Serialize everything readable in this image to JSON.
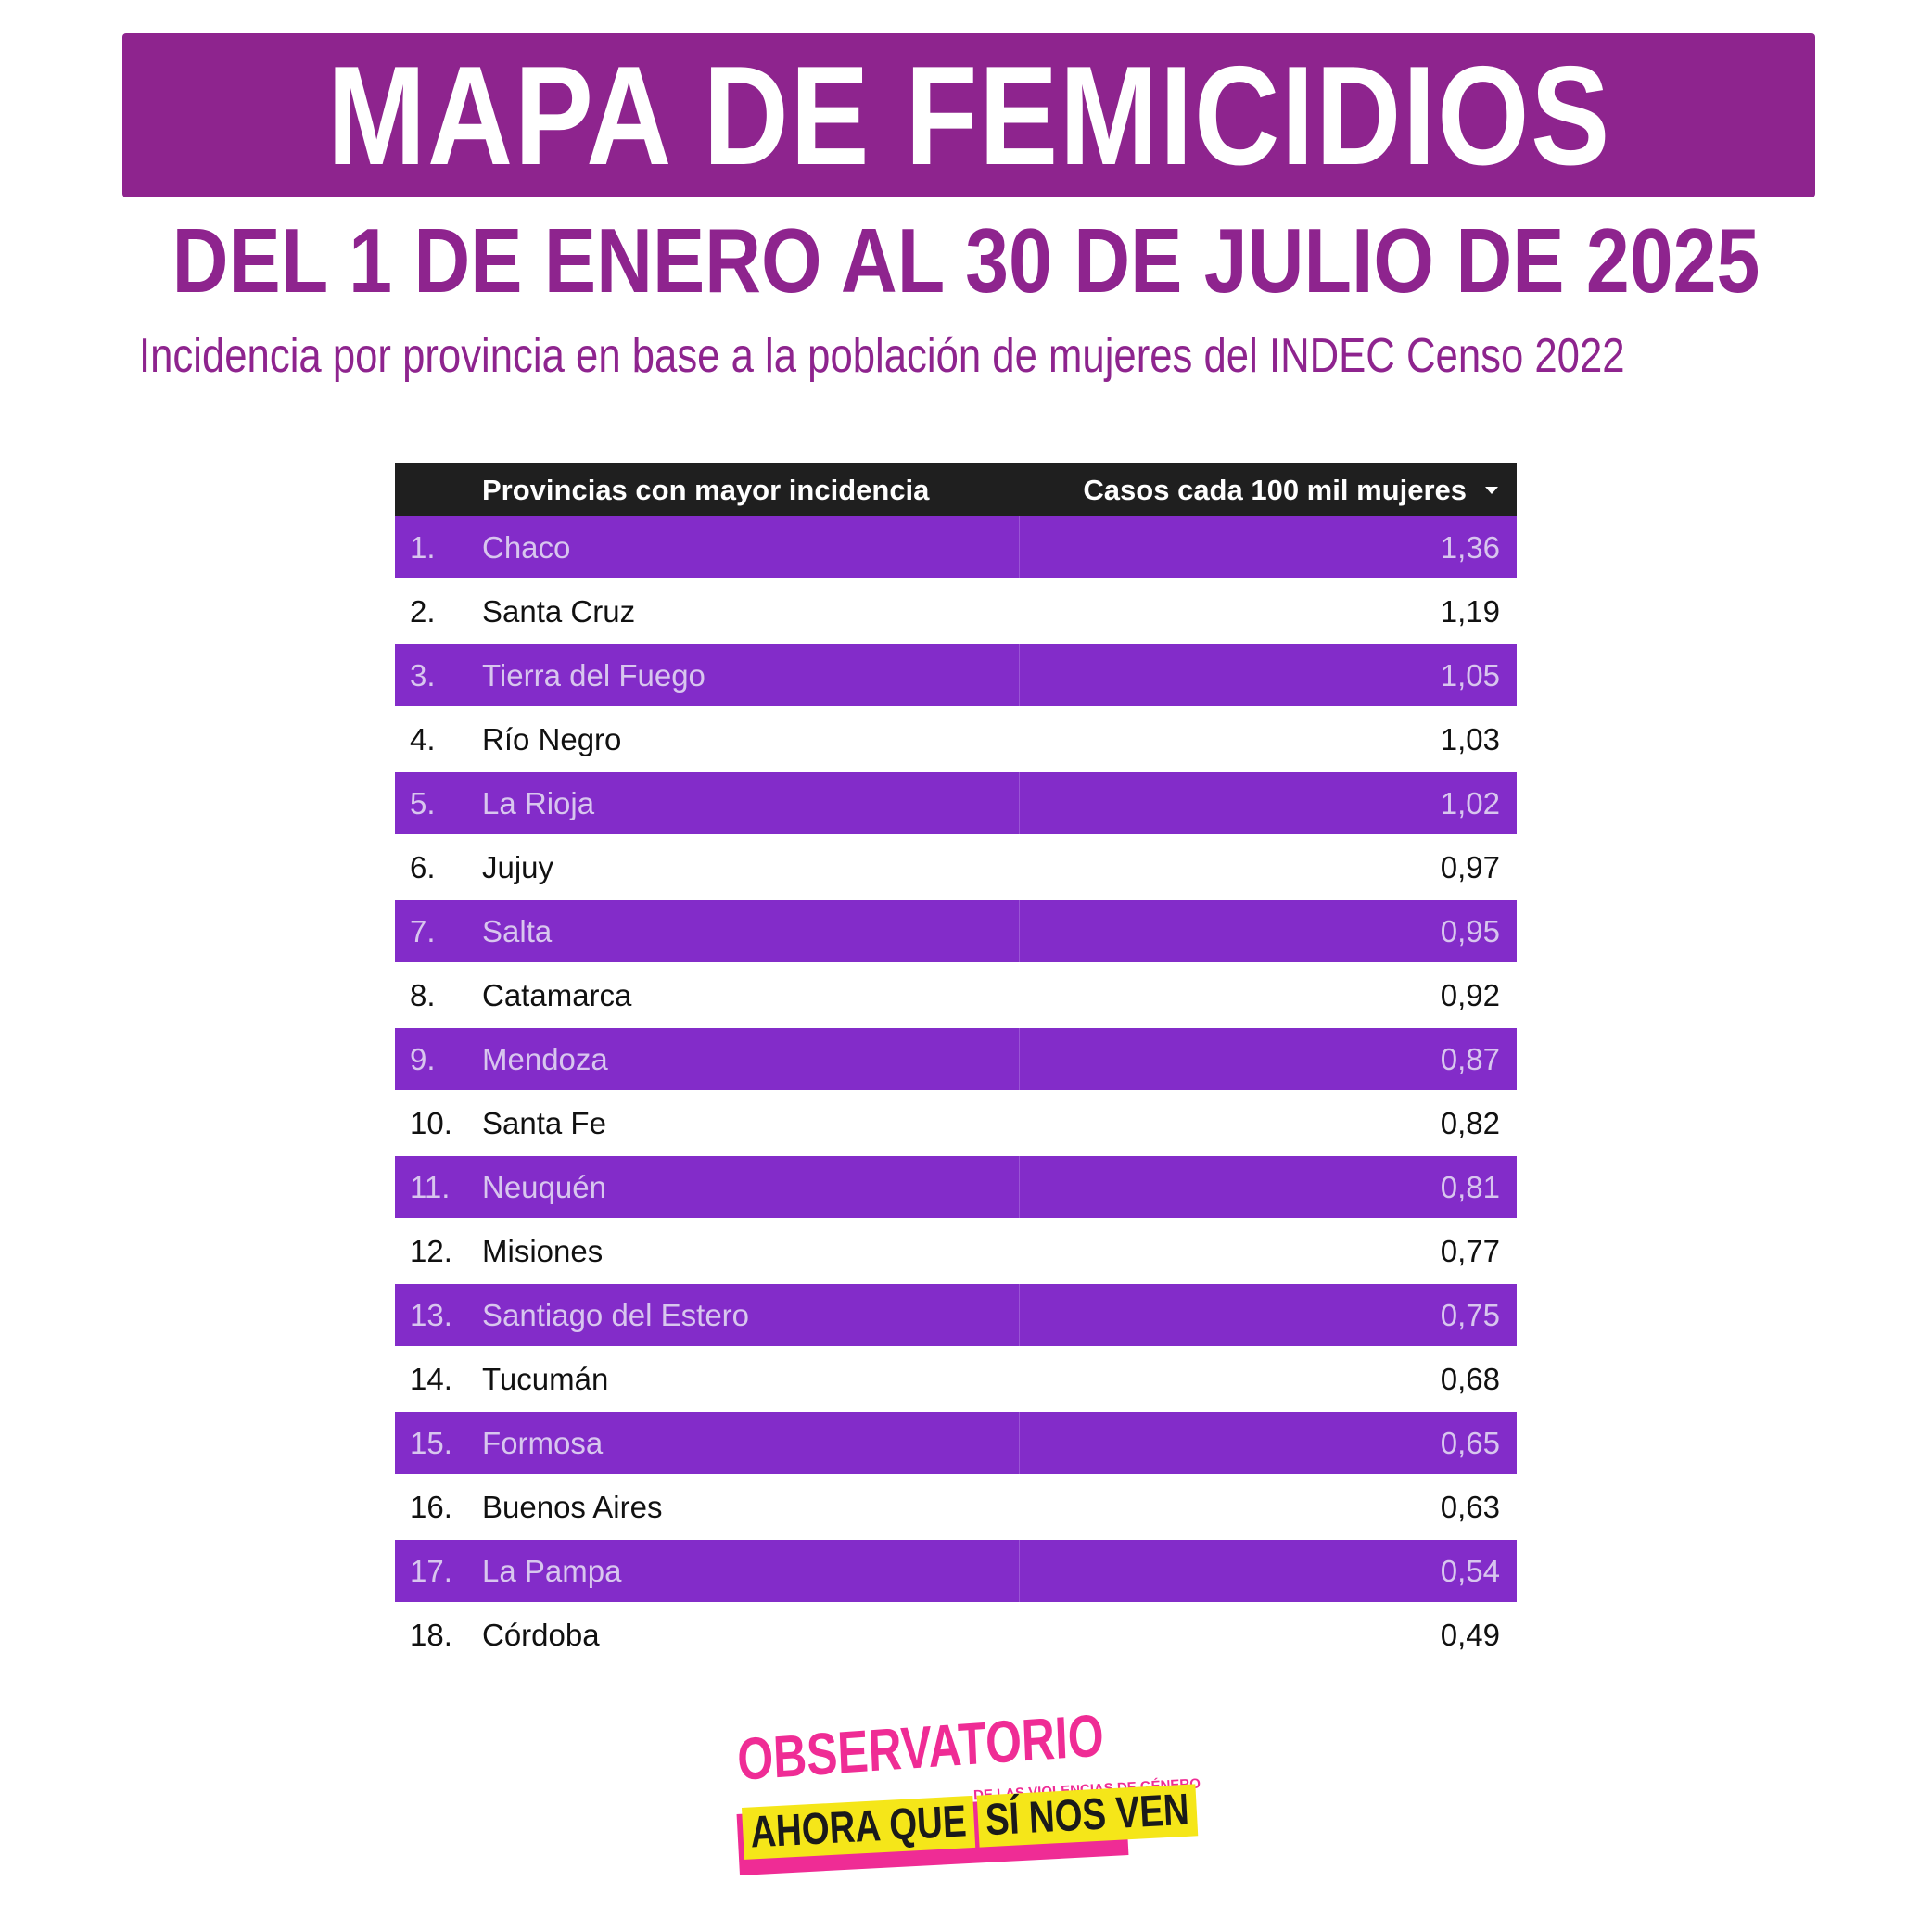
{
  "header": {
    "title": "MAPA DE FEMICIDIOS",
    "subtitle": "DEL 1 DE ENERO AL 30 DE JULIO DE 2025",
    "note": "Incidencia por provincia en base a la población de mujeres del INDEC Censo 2022"
  },
  "colors": {
    "brand_purple": "#8e248e",
    "row_purple": "#832cc9",
    "header_dark": "#1f1f1f",
    "logo_pink": "#ef2c95",
    "logo_yellow": "#f5e619"
  },
  "chart_data": {
    "type": "table",
    "columns": [
      "Provincias con mayor incidencia",
      "Casos cada 100 mil mujeres"
    ],
    "sort_indicator": "caret-down-icon",
    "rows": [
      {
        "rank": "1.",
        "province": "Chaco",
        "value": "1,36"
      },
      {
        "rank": "2.",
        "province": "Santa Cruz",
        "value": "1,19"
      },
      {
        "rank": "3.",
        "province": "Tierra del Fuego",
        "value": "1,05"
      },
      {
        "rank": "4.",
        "province": "Río Negro",
        "value": "1,03"
      },
      {
        "rank": "5.",
        "province": "La Rioja",
        "value": "1,02"
      },
      {
        "rank": "6.",
        "province": "Jujuy",
        "value": "0,97"
      },
      {
        "rank": "7.",
        "province": "Salta",
        "value": "0,95"
      },
      {
        "rank": "8.",
        "province": "Catamarca",
        "value": "0,92"
      },
      {
        "rank": "9.",
        "province": "Mendoza",
        "value": "0,87"
      },
      {
        "rank": "10.",
        "province": "Santa Fe",
        "value": "0,82"
      },
      {
        "rank": "11.",
        "province": "Neuquén",
        "value": "0,81"
      },
      {
        "rank": "12.",
        "province": "Misiones",
        "value": "0,77"
      },
      {
        "rank": "13.",
        "province": "Santiago del Estero",
        "value": "0,75"
      },
      {
        "rank": "14.",
        "province": "Tucumán",
        "value": "0,68"
      },
      {
        "rank": "15.",
        "province": "Formosa",
        "value": "0,65"
      },
      {
        "rank": "16.",
        "province": "Buenos Aires",
        "value": "0,63"
      },
      {
        "rank": "17.",
        "province": "La Pampa",
        "value": "0,54"
      },
      {
        "rank": "18.",
        "province": "Córdoba",
        "value": "0,49"
      }
    ]
  },
  "logo": {
    "line1": "OBSERVATORIO",
    "small": "DE LAS VIOLENCIAS DE GÉNERO",
    "ahora": "AHORA QUE",
    "nos": "SÍ NOS VEN"
  }
}
